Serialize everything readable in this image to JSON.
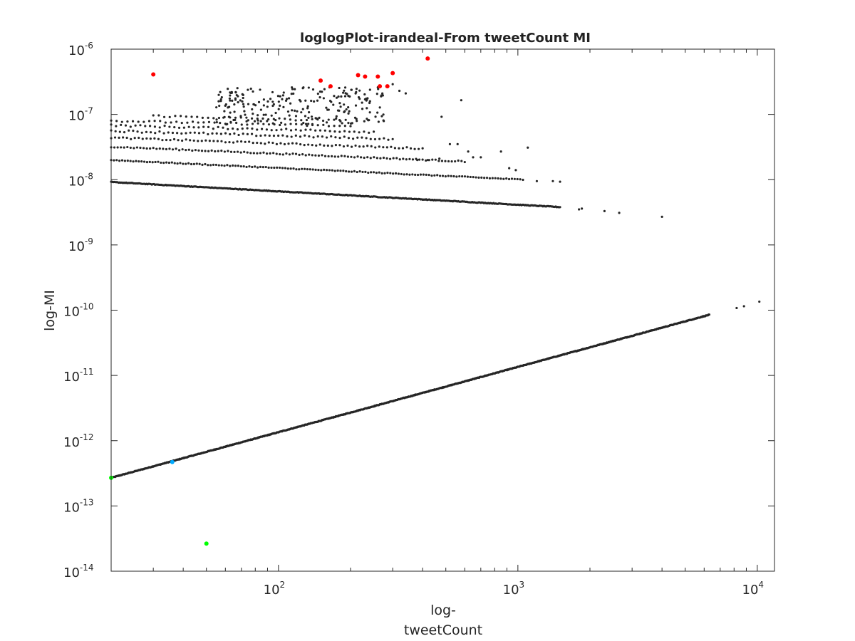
{
  "chart_data": {
    "type": "scatter",
    "title": "loglogPlot-irandeal-From tweetCount MI",
    "xlabel_lines": [
      "log-",
      "tweetCount"
    ],
    "ylabel": "log-MI",
    "xscale": "log",
    "yscale": "log",
    "xlim": [
      20,
      11800
    ],
    "ylim": [
      1e-14,
      1e-06
    ],
    "grid": false,
    "box": true,
    "x_ticks": [
      {
        "value": 100,
        "base": "10",
        "exp": "2"
      },
      {
        "value": 1000,
        "base": "10",
        "exp": "3"
      },
      {
        "value": 10000,
        "base": "10",
        "exp": "4"
      }
    ],
    "y_ticks": [
      {
        "value": 1e-14,
        "base": "10",
        "exp": "-14"
      },
      {
        "value": 1e-13,
        "base": "10",
        "exp": "-13"
      },
      {
        "value": 1e-12,
        "base": "10",
        "exp": "-12"
      },
      {
        "value": 1e-11,
        "base": "10",
        "exp": "-11"
      },
      {
        "value": 1e-10,
        "base": "10",
        "exp": "-10"
      },
      {
        "value": 1e-09,
        "base": "10",
        "exp": "-9"
      },
      {
        "value": 1e-08,
        "base": "10",
        "exp": "-8"
      },
      {
        "value": 1e-07,
        "base": "10",
        "exp": "-7"
      },
      {
        "value": 1e-06,
        "base": "10",
        "exp": "-6"
      }
    ],
    "series": [
      {
        "color": "#262626",
        "marker_size": 1.6,
        "bands": [
          {
            "x_start": 20,
            "x_end": 6300,
            "y_start": 2.7e-13,
            "y_end": 8.5e-11,
            "count": 900,
            "jitter": 0.01
          },
          {
            "x_start": 20,
            "x_end": 1500,
            "y_start": 9.2e-09,
            "y_end": 3.8e-09,
            "count": 420,
            "jitter": 0.01
          },
          {
            "x_start": 20,
            "x_end": 1050,
            "y_start": 2e-08,
            "y_end": 1e-08,
            "count": 150,
            "jitter": 0.015
          },
          {
            "x_start": 20,
            "x_end": 600,
            "y_start": 3.2e-08,
            "y_end": 1.9e-08,
            "count": 110,
            "jitter": 0.02
          },
          {
            "x_start": 20,
            "x_end": 400,
            "y_start": 4.4e-08,
            "y_end": 3e-08,
            "count": 80,
            "jitter": 0.025
          },
          {
            "x_start": 20,
            "x_end": 300,
            "y_start": 5.6e-08,
            "y_end": 4.2e-08,
            "count": 65,
            "jitter": 0.03
          },
          {
            "x_start": 20,
            "x_end": 250,
            "y_start": 6.8e-08,
            "y_end": 5.4e-08,
            "count": 55,
            "jitter": 0.03
          },
          {
            "x_start": 20,
            "x_end": 200,
            "y_start": 8e-08,
            "y_end": 6.6e-08,
            "count": 45,
            "jitter": 0.03
          },
          {
            "x_start": 30,
            "x_end": 180,
            "y_start": 9.5e-08,
            "y_end": 8e-08,
            "count": 35,
            "jitter": 0.03
          }
        ],
        "scatter_cloud": {
          "x_min": 55,
          "x_max": 280,
          "y_min": 7e-08,
          "y_max": 2.6e-07,
          "count": 220
        },
        "points": [
          [
            8200,
            1.08e-10
          ],
          [
            8800,
            1.15e-10
          ],
          [
            10200,
            1.35e-10
          ],
          [
            1800,
            3.5e-09
          ],
          [
            1850,
            3.6e-09
          ],
          [
            2300,
            3.3e-09
          ],
          [
            2650,
            3.1e-09
          ],
          [
            4000,
            2.7e-09
          ],
          [
            1200,
            9.5e-09
          ],
          [
            1400,
            9.5e-09
          ],
          [
            1500,
            9.3e-09
          ],
          [
            580,
            1.65e-07
          ],
          [
            480,
            9.2e-08
          ],
          [
            1100,
            3.1e-08
          ],
          [
            340,
            2.1e-07
          ],
          [
            520,
            3.5e-08
          ],
          [
            560,
            3.5e-08
          ],
          [
            620,
            2.7e-08
          ],
          [
            650,
            2.2e-08
          ],
          [
            700,
            2.2e-08
          ],
          [
            850,
            2.7e-08
          ],
          [
            920,
            1.5e-08
          ],
          [
            980,
            1.4e-08
          ],
          [
            380,
            2e-08
          ],
          [
            420,
            2e-08
          ],
          [
            470,
            2.1e-08
          ],
          [
            260,
            2.6e-07
          ],
          [
            300,
            2.9e-07
          ],
          [
            320,
            2.3e-07
          ],
          [
            230,
            1.7e-07
          ],
          [
            240,
            1.5e-07
          ],
          [
            190,
            1.9e-07
          ],
          [
            175,
            1.8e-07
          ],
          [
            210,
            2.1e-07
          ]
        ]
      },
      {
        "color": "#ff0000",
        "marker_size": 3,
        "points": [
          [
            30,
            4.1e-07
          ],
          [
            150,
            3.3e-07
          ],
          [
            165,
            2.7e-07
          ],
          [
            215,
            4e-07
          ],
          [
            230,
            3.8e-07
          ],
          [
            260,
            3.8e-07
          ],
          [
            265,
            2.7e-07
          ],
          [
            285,
            2.7e-07
          ],
          [
            300,
            4.3e-07
          ],
          [
            420,
            7.2e-07
          ]
        ]
      },
      {
        "color": "#00ff00",
        "marker_size": 3,
        "points": [
          [
            20,
            2.7e-13
          ],
          [
            50,
            2.65e-14
          ]
        ]
      },
      {
        "color": "#00aaff",
        "marker_size": 3,
        "points": [
          [
            36,
            4.7e-13
          ]
        ]
      }
    ]
  }
}
